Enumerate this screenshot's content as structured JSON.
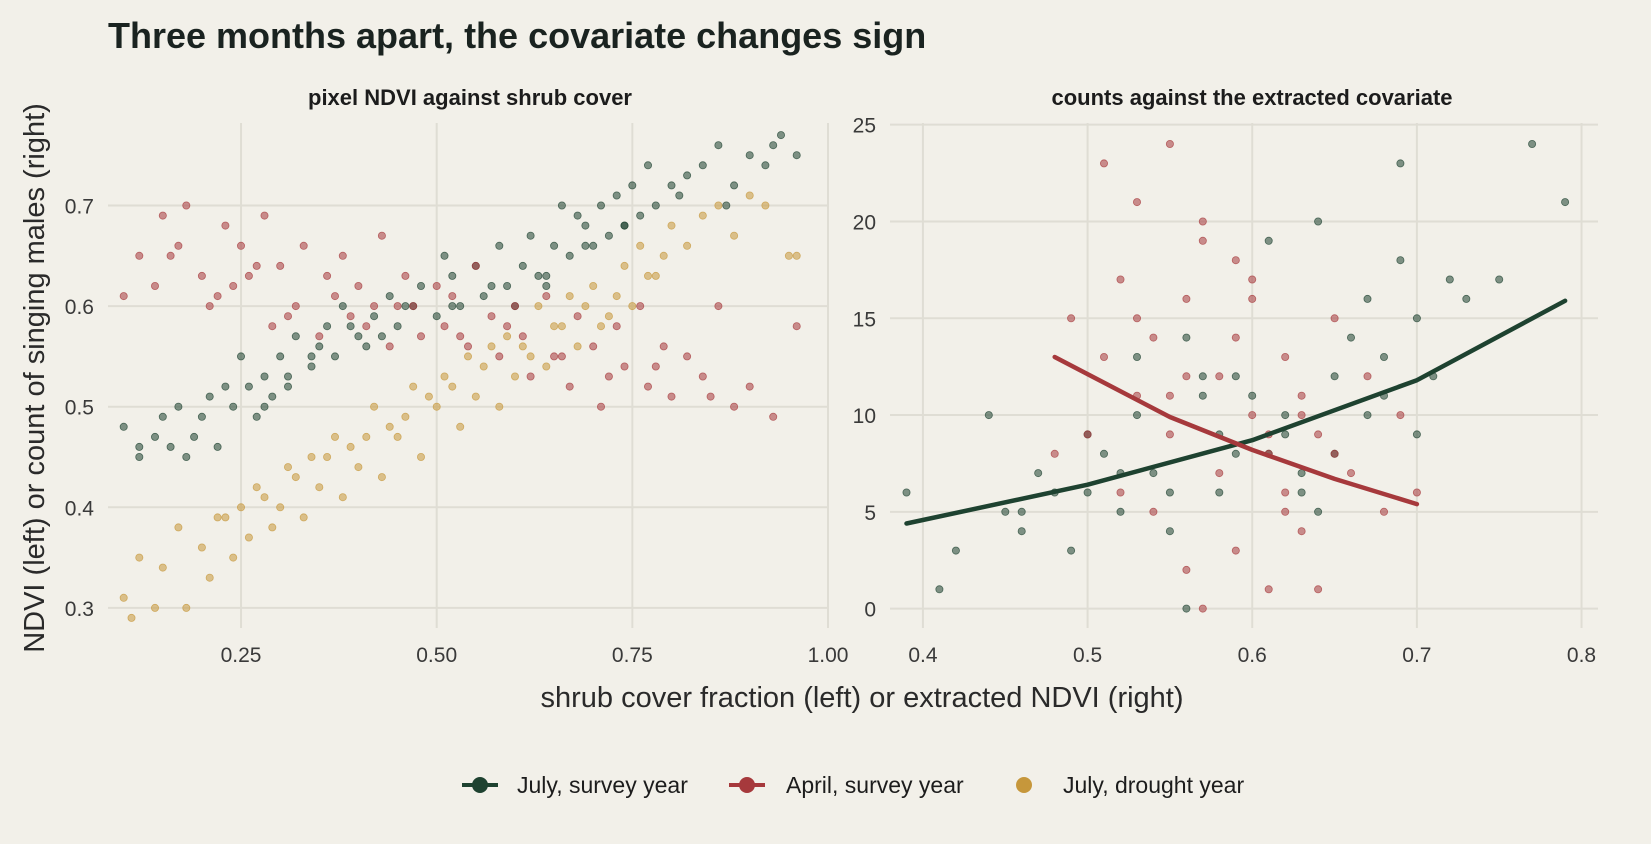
{
  "title": "Three months apart, the covariate changes sign",
  "y_axis_title": "NDVI (left) or count of singing males (right)",
  "x_axis_title": "shrub cover fraction (left) or extracted NDVI (right)",
  "colors": {
    "july_survey": "#1e4230",
    "april_survey": "#a6393c",
    "july_drought": "#c6973b",
    "background": "#f2f0e9",
    "grid": "#dfddd4"
  },
  "legend": [
    {
      "label": "July, survey year",
      "color": "#1e4230",
      "type": "line-point"
    },
    {
      "label": "April, survey year",
      "color": "#a6393c",
      "type": "line-point"
    },
    {
      "label": "July, drought year",
      "color": "#c6973b",
      "type": "point"
    }
  ],
  "chart_data": [
    {
      "type": "scatter",
      "title": "pixel NDVI against shrub cover",
      "xlim": [
        0.08,
        1.0
      ],
      "ylim": [
        0.28,
        0.79
      ],
      "x_ticks": [
        0.25,
        0.5,
        0.75,
        1.0
      ],
      "x_tick_labels": [
        "0.25",
        "0.50",
        "0.75",
        "1.00"
      ],
      "y_ticks": [
        0.3,
        0.4,
        0.5,
        0.6,
        0.7
      ],
      "y_tick_labels": [
        "0.3",
        "0.4",
        "0.5",
        "0.6",
        "0.7"
      ],
      "grid": true,
      "series": [
        {
          "name": "July, survey year",
          "color": "#1e4230",
          "x": [
            0.1,
            0.12,
            0.12,
            0.14,
            0.15,
            0.16,
            0.17,
            0.18,
            0.19,
            0.2,
            0.21,
            0.22,
            0.23,
            0.24,
            0.25,
            0.26,
            0.27,
            0.28,
            0.29,
            0.3,
            0.31,
            0.32,
            0.34,
            0.35,
            0.36,
            0.37,
            0.38,
            0.4,
            0.41,
            0.42,
            0.44,
            0.45,
            0.46,
            0.48,
            0.5,
            0.51,
            0.52,
            0.53,
            0.55,
            0.56,
            0.57,
            0.58,
            0.6,
            0.61,
            0.62,
            0.63,
            0.64,
            0.65,
            0.66,
            0.67,
            0.68,
            0.69,
            0.7,
            0.71,
            0.72,
            0.73,
            0.74,
            0.75,
            0.76,
            0.77,
            0.78,
            0.8,
            0.82,
            0.84,
            0.86,
            0.88,
            0.9,
            0.92,
            0.94,
            0.96,
            0.28,
            0.31,
            0.34,
            0.39,
            0.43,
            0.47,
            0.52,
            0.59,
            0.64,
            0.69,
            0.74,
            0.81,
            0.87,
            0.93
          ],
          "y": [
            0.48,
            0.46,
            0.45,
            0.47,
            0.49,
            0.46,
            0.5,
            0.45,
            0.47,
            0.49,
            0.51,
            0.46,
            0.52,
            0.5,
            0.55,
            0.52,
            0.49,
            0.53,
            0.51,
            0.55,
            0.52,
            0.57,
            0.54,
            0.56,
            0.58,
            0.55,
            0.6,
            0.57,
            0.56,
            0.59,
            0.61,
            0.58,
            0.6,
            0.62,
            0.59,
            0.65,
            0.63,
            0.6,
            0.64,
            0.61,
            0.62,
            0.66,
            0.6,
            0.64,
            0.67,
            0.63,
            0.62,
            0.66,
            0.7,
            0.65,
            0.69,
            0.68,
            0.66,
            0.7,
            0.67,
            0.71,
            0.68,
            0.72,
            0.69,
            0.74,
            0.7,
            0.72,
            0.73,
            0.74,
            0.76,
            0.72,
            0.75,
            0.74,
            0.77,
            0.75,
            0.5,
            0.53,
            0.55,
            0.58,
            0.57,
            0.6,
            0.6,
            0.62,
            0.63,
            0.66,
            0.68,
            0.71,
            0.7,
            0.76
          ]
        },
        {
          "name": "April, survey year",
          "color": "#a6393c",
          "x": [
            0.1,
            0.12,
            0.14,
            0.15,
            0.17,
            0.18,
            0.2,
            0.21,
            0.23,
            0.24,
            0.25,
            0.27,
            0.28,
            0.29,
            0.3,
            0.32,
            0.33,
            0.35,
            0.36,
            0.38,
            0.39,
            0.4,
            0.42,
            0.43,
            0.44,
            0.46,
            0.47,
            0.48,
            0.5,
            0.51,
            0.52,
            0.54,
            0.55,
            0.57,
            0.58,
            0.6,
            0.61,
            0.62,
            0.64,
            0.65,
            0.67,
            0.68,
            0.7,
            0.71,
            0.73,
            0.74,
            0.76,
            0.77,
            0.79,
            0.8,
            0.82,
            0.84,
            0.86,
            0.88,
            0.9,
            0.93,
            0.96,
            0.16,
            0.22,
            0.26,
            0.31,
            0.37,
            0.41,
            0.45,
            0.53,
            0.59,
            0.66,
            0.72,
            0.78,
            0.85
          ],
          "y": [
            0.61,
            0.65,
            0.62,
            0.69,
            0.66,
            0.7,
            0.63,
            0.6,
            0.68,
            0.62,
            0.66,
            0.64,
            0.69,
            0.58,
            0.64,
            0.6,
            0.66,
            0.57,
            0.63,
            0.65,
            0.59,
            0.62,
            0.6,
            0.67,
            0.56,
            0.63,
            0.6,
            0.57,
            0.62,
            0.58,
            0.61,
            0.56,
            0.64,
            0.59,
            0.55,
            0.6,
            0.57,
            0.53,
            0.61,
            0.55,
            0.52,
            0.59,
            0.56,
            0.5,
            0.58,
            0.54,
            0.6,
            0.52,
            0.56,
            0.51,
            0.55,
            0.53,
            0.6,
            0.5,
            0.52,
            0.49,
            0.58,
            0.65,
            0.61,
            0.63,
            0.59,
            0.61,
            0.58,
            0.6,
            0.57,
            0.58,
            0.55,
            0.53,
            0.54,
            0.51
          ]
        },
        {
          "name": "July, drought year",
          "color": "#c6973b",
          "x": [
            0.1,
            0.11,
            0.12,
            0.14,
            0.15,
            0.17,
            0.18,
            0.2,
            0.21,
            0.22,
            0.24,
            0.25,
            0.26,
            0.27,
            0.29,
            0.3,
            0.31,
            0.33,
            0.34,
            0.35,
            0.37,
            0.38,
            0.39,
            0.4,
            0.42,
            0.43,
            0.45,
            0.46,
            0.47,
            0.48,
            0.5,
            0.51,
            0.53,
            0.54,
            0.55,
            0.57,
            0.58,
            0.59,
            0.6,
            0.62,
            0.63,
            0.64,
            0.66,
            0.67,
            0.68,
            0.7,
            0.71,
            0.72,
            0.74,
            0.75,
            0.76,
            0.78,
            0.79,
            0.8,
            0.82,
            0.84,
            0.86,
            0.88,
            0.9,
            0.92,
            0.95,
            0.96,
            0.23,
            0.28,
            0.32,
            0.36,
            0.41,
            0.44,
            0.49,
            0.52,
            0.56,
            0.61,
            0.65,
            0.69,
            0.73,
            0.77
          ],
          "y": [
            0.31,
            0.29,
            0.35,
            0.3,
            0.34,
            0.38,
            0.3,
            0.36,
            0.33,
            0.39,
            0.35,
            0.4,
            0.37,
            0.42,
            0.38,
            0.4,
            0.44,
            0.39,
            0.45,
            0.42,
            0.47,
            0.41,
            0.46,
            0.44,
            0.5,
            0.43,
            0.47,
            0.49,
            0.52,
            0.45,
            0.5,
            0.53,
            0.48,
            0.55,
            0.51,
            0.56,
            0.5,
            0.57,
            0.53,
            0.55,
            0.6,
            0.54,
            0.58,
            0.61,
            0.56,
            0.62,
            0.58,
            0.59,
            0.64,
            0.6,
            0.66,
            0.63,
            0.65,
            0.68,
            0.66,
            0.69,
            0.7,
            0.67,
            0.71,
            0.7,
            0.65,
            0.65,
            0.39,
            0.41,
            0.43,
            0.45,
            0.47,
            0.48,
            0.51,
            0.52,
            0.54,
            0.56,
            0.58,
            0.6,
            0.61,
            0.63
          ]
        }
      ]
    },
    {
      "type": "scatter",
      "title": "counts against the extracted covariate",
      "xlim": [
        0.38,
        0.81
      ],
      "ylim": [
        -1,
        25.5
      ],
      "x_ticks": [
        0.4,
        0.5,
        0.6,
        0.7,
        0.8
      ],
      "x_tick_labels": [
        "0.4",
        "0.5",
        "0.6",
        "0.7",
        "0.8"
      ],
      "y_ticks": [
        0,
        5,
        10,
        15,
        20,
        25
      ],
      "y_tick_labels": [
        "0",
        "5",
        "10",
        "15",
        "20",
        "25"
      ],
      "grid": true,
      "series": [
        {
          "name": "July, survey year",
          "color": "#1e4230",
          "x": [
            0.39,
            0.41,
            0.42,
            0.44,
            0.45,
            0.46,
            0.47,
            0.48,
            0.49,
            0.5,
            0.51,
            0.52,
            0.53,
            0.54,
            0.55,
            0.56,
            0.57,
            0.58,
            0.59,
            0.6,
            0.61,
            0.62,
            0.63,
            0.64,
            0.65,
            0.66,
            0.67,
            0.68,
            0.69,
            0.7,
            0.71,
            0.72,
            0.73,
            0.75,
            0.77,
            0.79,
            0.5,
            0.53,
            0.56,
            0.59,
            0.62,
            0.65,
            0.68,
            0.55,
            0.58,
            0.61,
            0.64,
            0.67,
            0.7,
            0.46,
            0.52,
            0.57,
            0.63,
            0.69
          ],
          "y": [
            6,
            1,
            3,
            10,
            5,
            4,
            7,
            6,
            3,
            9,
            8,
            5,
            13,
            7,
            6,
            0,
            12,
            9,
            8,
            11,
            19,
            10,
            7,
            20,
            12,
            14,
            16,
            11,
            23,
            15,
            12,
            17,
            16,
            17,
            24,
            21,
            6,
            10,
            14,
            12,
            9,
            8,
            13,
            4,
            6,
            8,
            5,
            10,
            9,
            5,
            7,
            11,
            6,
            18
          ]
        },
        {
          "name": "April, survey year",
          "color": "#a6393c",
          "x": [
            0.48,
            0.49,
            0.5,
            0.51,
            0.52,
            0.52,
            0.53,
            0.53,
            0.54,
            0.54,
            0.55,
            0.55,
            0.56,
            0.56,
            0.57,
            0.57,
            0.58,
            0.58,
            0.59,
            0.59,
            0.6,
            0.6,
            0.61,
            0.61,
            0.62,
            0.62,
            0.63,
            0.63,
            0.64,
            0.64,
            0.65,
            0.66,
            0.67,
            0.68,
            0.69,
            0.7,
            0.51,
            0.53,
            0.55,
            0.57,
            0.59,
            0.61,
            0.63,
            0.65,
            0.56,
            0.6,
            0.62
          ],
          "y": [
            8,
            15,
            9,
            23,
            17,
            6,
            21,
            11,
            14,
            5,
            24,
            9,
            16,
            2,
            20,
            0,
            12,
            7,
            18,
            3,
            17,
            10,
            8,
            1,
            6,
            13,
            11,
            4,
            9,
            1,
            15,
            7,
            12,
            5,
            10,
            6,
            13,
            15,
            11,
            19,
            14,
            9,
            10,
            8,
            12,
            16,
            5
          ]
        }
      ],
      "fits": [
        {
          "name": "July, survey year",
          "color": "#1e4230",
          "x": [
            0.39,
            0.5,
            0.6,
            0.7,
            0.79
          ],
          "y": [
            4.4,
            6.4,
            8.7,
            11.8,
            15.9
          ]
        },
        {
          "name": "April, survey year",
          "color": "#a6393c",
          "x": [
            0.48,
            0.55,
            0.6,
            0.65,
            0.7
          ],
          "y": [
            13.0,
            9.9,
            8.2,
            6.7,
            5.4
          ]
        }
      ]
    }
  ]
}
